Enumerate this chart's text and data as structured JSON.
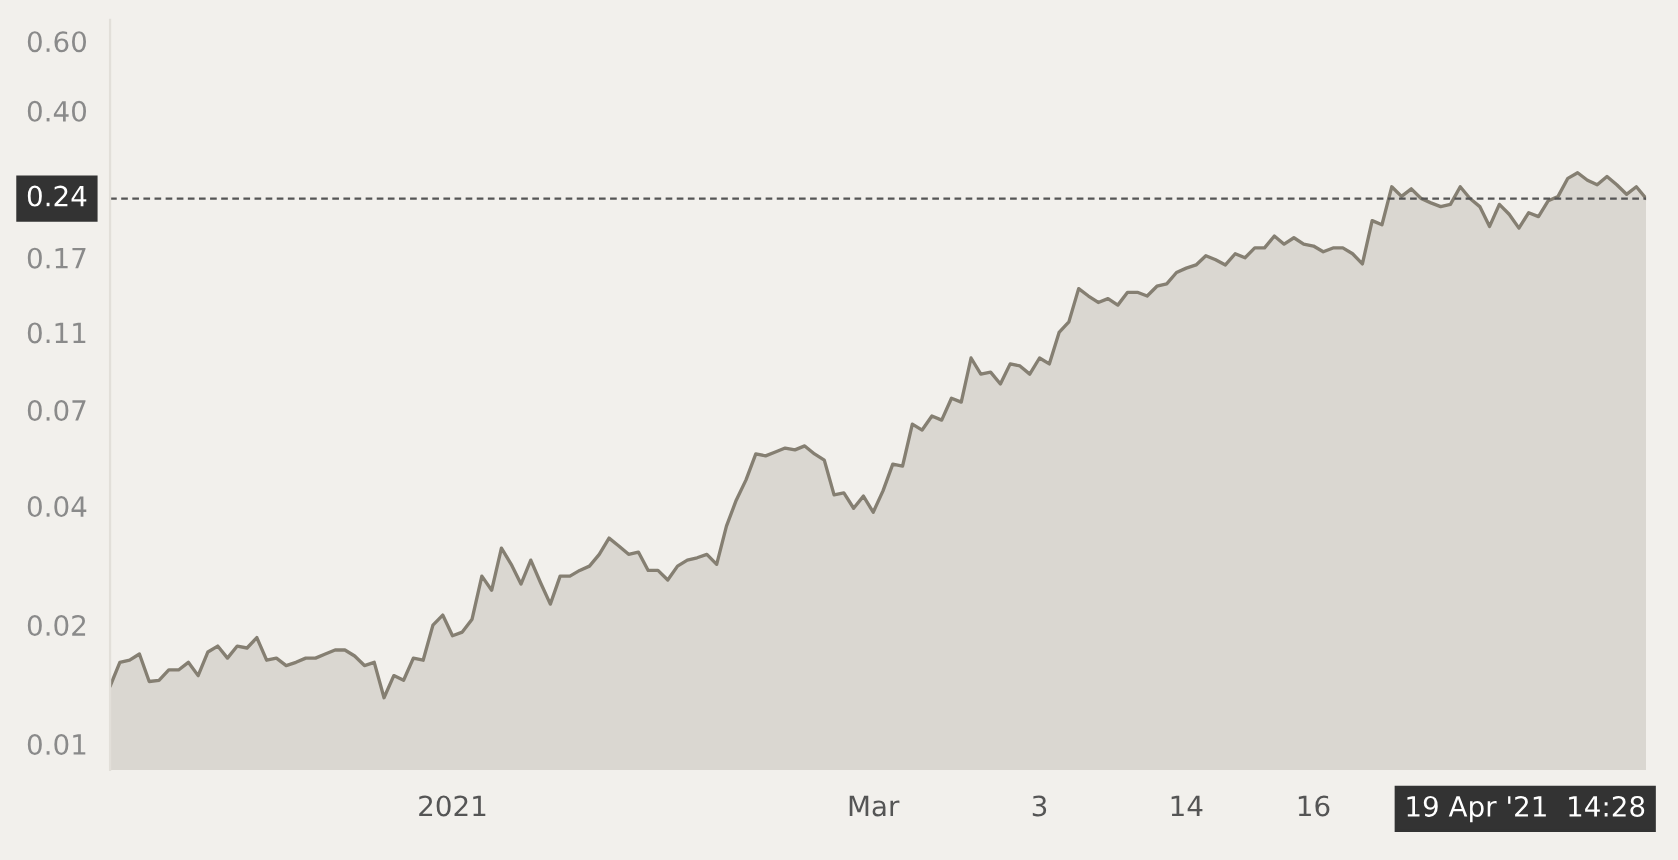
{
  "chart_data": {
    "type": "area",
    "categories": [
      null,
      null,
      null,
      null,
      null,
      null,
      null,
      null,
      null,
      null,
      null,
      null,
      null,
      null,
      null,
      null,
      null,
      null,
      null,
      null,
      null,
      null,
      null,
      null,
      null,
      null,
      null,
      null,
      null,
      null,
      null,
      null,
      null,
      null,
      null,
      "2021",
      null,
      null,
      null,
      null,
      null,
      null,
      null,
      null,
      null,
      null,
      null,
      null,
      null,
      null,
      null,
      null,
      null,
      null,
      null,
      null,
      null,
      null,
      null,
      null,
      null,
      null,
      null,
      null,
      null,
      null,
      null,
      null,
      null,
      null,
      null,
      null,
      null,
      null,
      null,
      null,
      null,
      null,
      "Mar",
      null,
      null,
      null,
      null,
      null,
      null,
      null,
      null,
      null,
      null,
      null,
      null,
      null,
      null,
      null,
      null,
      "3",
      null,
      null,
      null,
      null,
      null,
      null,
      null,
      null,
      null,
      null,
      null,
      null,
      null,
      null,
      "14",
      null,
      null,
      null,
      null,
      null,
      null,
      null,
      null,
      null,
      null,
      null,
      null,
      "16",
      null,
      null,
      null,
      null,
      null,
      null,
      null,
      null,
      null,
      null,
      null,
      null,
      null,
      null,
      null,
      null,
      null,
      null,
      null,
      null,
      null,
      null,
      null,
      null,
      null,
      null,
      null,
      null,
      null,
      null,
      null,
      null,
      null,
      null
    ],
    "annotations": [
      "19 Apr '21  14:28"
    ],
    "series": [
      {
        "color": "#857f72",
        "values": [
          0.014,
          0.0161,
          0.0163,
          0.0169,
          0.0144,
          0.0145,
          0.0154,
          0.0154,
          0.0161,
          0.0149,
          0.0171,
          0.0177,
          0.0165,
          0.0177,
          0.0175,
          0.0186,
          0.0163,
          0.0165,
          0.0158,
          0.0161,
          0.0165,
          0.0165,
          0.0169,
          0.0173,
          0.0173,
          0.0167,
          0.0158,
          0.0161,
          0.0131,
          0.0149,
          0.0145,
          0.0165,
          0.0163,
          0.02,
          0.0212,
          0.0188,
          0.0192,
          0.0207,
          0.0266,
          0.0245,
          0.0313,
          0.0285,
          0.0254,
          0.0292,
          0.0256,
          0.0226,
          0.0266,
          0.0266,
          0.0275,
          0.0282,
          0.0302,
          0.0332,
          0.0317,
          0.0302,
          0.0306,
          0.0275,
          0.0275,
          0.026,
          0.0282,
          0.0292,
          0.0296,
          0.0302,
          0.0285,
          0.0356,
          0.0414,
          0.0466,
          0.0542,
          0.0536,
          0.0548,
          0.0561,
          0.0555,
          0.0568,
          0.0542,
          0.0523,
          0.0427,
          0.0432,
          0.0395,
          0.0424,
          0.0386,
          0.0437,
          0.0511,
          0.0505,
          0.0645,
          0.0623,
          0.0676,
          0.066,
          0.075,
          0.0733,
          0.0948,
          0.0863,
          0.0873,
          0.0815,
          0.0916,
          0.0905,
          0.0863,
          0.0948,
          0.0916,
          0.11,
          0.117,
          0.142,
          0.136,
          0.131,
          0.134,
          0.129,
          0.139,
          0.139,
          0.136,
          0.144,
          0.146,
          0.156,
          0.16,
          0.163,
          0.172,
          0.168,
          0.163,
          0.174,
          0.17,
          0.18,
          0.18,
          0.193,
          0.184,
          0.191,
          0.184,
          0.182,
          0.176,
          0.18,
          0.18,
          0.174,
          0.164,
          0.211,
          0.206,
          0.257,
          0.243,
          0.254,
          0.24,
          0.234,
          0.229,
          0.232,
          0.257,
          0.24,
          0.229,
          0.204,
          0.232,
          0.219,
          0.202,
          0.221,
          0.216,
          0.237,
          0.243,
          0.27,
          0.279,
          0.267,
          0.26,
          0.273,
          0.26,
          0.246,
          0.257,
          0.24
        ]
      }
    ],
    "log": "y",
    "ylim": [
      0.0086,
      0.68
    ],
    "yticks": [
      {
        "value": 0.01,
        "label": "0.01"
      },
      {
        "value": 0.02,
        "label": "0.02"
      },
      {
        "value": 0.04,
        "label": "0.04"
      },
      {
        "value": 0.07,
        "label": "0.07"
      },
      {
        "value": 0.11,
        "label": "0.11"
      },
      {
        "value": 0.17,
        "label": "0.17"
      },
      {
        "value": 0.4,
        "label": "0.40"
      },
      {
        "value": 0.6,
        "label": "0.60"
      }
    ],
    "ref_lines": [
      {
        "axis": "y",
        "value": 0.24,
        "label": "0.24",
        "color": "#555555",
        "line_style": "dashed"
      }
    ],
    "grid": false,
    "legend": false
  }
}
